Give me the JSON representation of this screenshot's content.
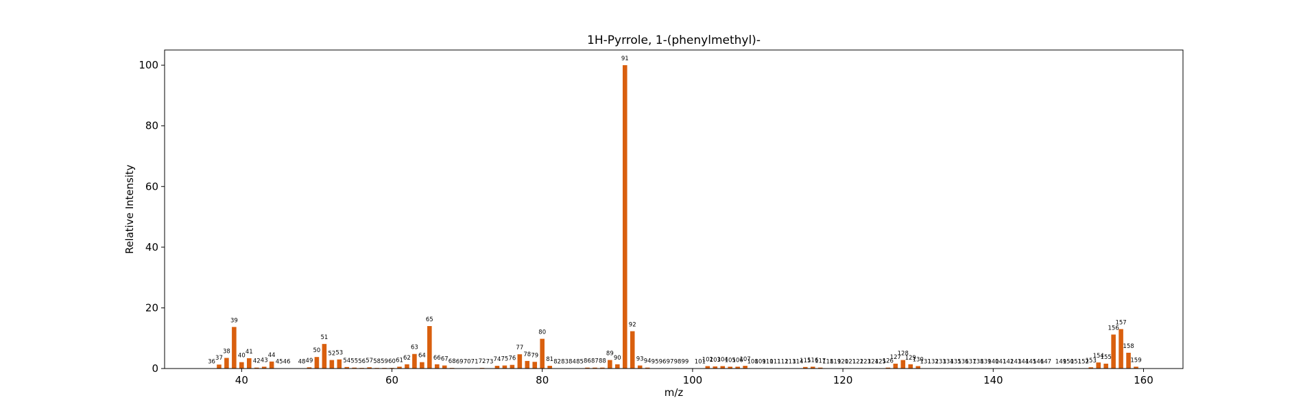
{
  "chart_data": {
    "type": "bar",
    "title": "1H-Pyrrole, 1-(phenylmethyl)-",
    "xlabel": "m/z",
    "ylabel": "Relative Intensity",
    "xlim": [
      29.75,
      165.25
    ],
    "ylim": [
      0,
      105
    ],
    "xticks": [
      40,
      60,
      80,
      100,
      120,
      140,
      160
    ],
    "yticks": [
      0,
      20,
      40,
      60,
      80,
      100
    ],
    "grid": false,
    "bar_color": "#d95f0e",
    "x": [
      36,
      37,
      38,
      39,
      40,
      41,
      42,
      43,
      44,
      45,
      46,
      48,
      49,
      50,
      51,
      52,
      53,
      54,
      55,
      56,
      57,
      58,
      59,
      60,
      61,
      62,
      63,
      64,
      65,
      66,
      67,
      68,
      69,
      70,
      71,
      72,
      73,
      74,
      75,
      76,
      77,
      78,
      79,
      80,
      81,
      82,
      83,
      84,
      85,
      86,
      87,
      88,
      89,
      90,
      91,
      92,
      93,
      94,
      95,
      96,
      97,
      98,
      99,
      101,
      102,
      103,
      104,
      105,
      106,
      107,
      108,
      109,
      110,
      111,
      112,
      113,
      114,
      115,
      116,
      117,
      118,
      119,
      120,
      121,
      122,
      123,
      124,
      125,
      126,
      127,
      128,
      129,
      130,
      131,
      132,
      133,
      134,
      135,
      136,
      137,
      138,
      139,
      140,
      141,
      142,
      143,
      144,
      145,
      146,
      147,
      149,
      150,
      151,
      152,
      153,
      154,
      155,
      156,
      157,
      158,
      159
    ],
    "values": [
      0.1,
      1.3,
      3.5,
      13.7,
      2.1,
      3.4,
      0.3,
      0.6,
      2.3,
      0.1,
      0.1,
      0.1,
      0.4,
      3.8,
      8.1,
      2.8,
      3.0,
      0.5,
      0.3,
      0.2,
      0.4,
      0.2,
      0.2,
      0.2,
      0.6,
      1.4,
      4.8,
      2.1,
      14.0,
      1.4,
      1.0,
      0.2,
      0.1,
      0.1,
      0.1,
      0.2,
      0.1,
      0.9,
      1.0,
      1.2,
      4.7,
      2.5,
      2.2,
      9.8,
      0.9,
      0.1,
      0.1,
      0.1,
      0.1,
      0.3,
      0.3,
      0.3,
      2.8,
      1.4,
      100,
      12.3,
      1.0,
      0.3,
      0.1,
      0.1,
      0.1,
      0.1,
      0.1,
      0.1,
      0.8,
      0.7,
      0.8,
      0.6,
      0.6,
      0.9,
      0.1,
      0.1,
      0.1,
      0.1,
      0.1,
      0.1,
      0.1,
      0.5,
      0.6,
      0.3,
      0.1,
      0.1,
      0.1,
      0.1,
      0.1,
      0.1,
      0.1,
      0.1,
      0.3,
      1.6,
      2.8,
      1.4,
      0.8,
      0.1,
      0.1,
      0.1,
      0.1,
      0.1,
      0.1,
      0.1,
      0.1,
      0.1,
      0.1,
      0.1,
      0.1,
      0.1,
      0.1,
      0.1,
      0.1,
      0.1,
      0.1,
      0.1,
      0.1,
      0.1,
      0.4,
      2.0,
      1.6,
      11.2,
      13.0,
      5.2,
      0.6
    ]
  }
}
